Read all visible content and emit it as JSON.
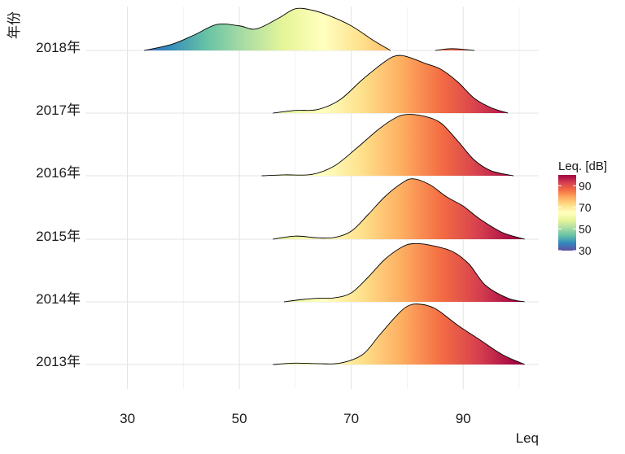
{
  "chart_data": {
    "type": "ridgeline",
    "xlabel": "Leq",
    "ylabel": "年份",
    "xlim": [
      22.5,
      103.5
    ],
    "xticks": [
      "30",
      "50",
      "70",
      "90"
    ],
    "xtick_values": [
      30,
      50,
      70,
      90
    ],
    "grid": true,
    "legend": {
      "title": "Leq. [dB]",
      "placement": "right",
      "ticks": [
        "90",
        "70",
        "50",
        "30"
      ],
      "tick_values": [
        90,
        70,
        50,
        30
      ],
      "range": [
        30,
        100
      ]
    },
    "colorscale": [
      "#5e4fa2",
      "#3288bd",
      "#66c2a5",
      "#abdda4",
      "#e6f598",
      "#ffffbf",
      "#fee08b",
      "#fdae61",
      "#f46d43",
      "#d53e4f",
      "#9e0142"
    ],
    "series": [
      {
        "name": "2018年",
        "x": [
          33,
          38,
          42,
          46,
          50,
          53,
          57,
          60,
          63,
          66,
          70,
          74,
          77,
          85,
          88,
          92
        ],
        "density": [
          0.0,
          0.14,
          0.35,
          0.58,
          0.55,
          0.48,
          0.72,
          0.93,
          0.9,
          0.78,
          0.55,
          0.22,
          0.0,
          0.0,
          0.04,
          0.0
        ]
      },
      {
        "name": "2017年",
        "x": [
          56,
          60,
          64,
          68,
          72,
          76,
          78,
          80,
          83,
          86,
          89,
          92,
          95,
          98
        ],
        "density": [
          0.0,
          0.06,
          0.08,
          0.3,
          0.75,
          1.15,
          1.28,
          1.26,
          1.12,
          0.98,
          0.7,
          0.33,
          0.12,
          0.0
        ]
      },
      {
        "name": "2016年",
        "x": [
          54,
          58,
          63,
          67,
          71,
          75,
          78,
          80,
          83,
          86,
          89,
          92,
          95,
          99
        ],
        "density": [
          0.0,
          0.02,
          0.03,
          0.22,
          0.62,
          1.05,
          1.3,
          1.37,
          1.33,
          1.18,
          0.78,
          0.35,
          0.11,
          0.0
        ]
      },
      {
        "name": "2015年",
        "x": [
          56,
          60,
          64,
          67,
          70,
          73,
          76,
          79,
          81,
          84,
          87,
          90,
          93,
          97,
          101
        ],
        "density": [
          0.0,
          0.07,
          0.03,
          0.04,
          0.18,
          0.55,
          0.95,
          1.25,
          1.35,
          1.22,
          0.95,
          0.74,
          0.45,
          0.15,
          0.0
        ]
      },
      {
        "name": "2014年",
        "x": [
          58,
          61,
          64,
          67,
          70,
          73,
          76,
          79,
          81,
          84,
          88,
          91,
          94,
          98,
          101
        ],
        "density": [
          0.0,
          0.05,
          0.08,
          0.09,
          0.2,
          0.55,
          0.95,
          1.22,
          1.3,
          1.27,
          1.13,
          0.85,
          0.37,
          0.08,
          0.0
        ]
      },
      {
        "name": "2013年",
        "x": [
          56,
          60,
          64,
          68,
          72,
          75,
          78,
          80,
          82,
          85,
          89,
          93,
          97,
          101
        ],
        "density": [
          0.0,
          0.03,
          0.02,
          0.03,
          0.22,
          0.65,
          1.08,
          1.3,
          1.35,
          1.25,
          0.88,
          0.55,
          0.22,
          0.0
        ]
      }
    ]
  }
}
